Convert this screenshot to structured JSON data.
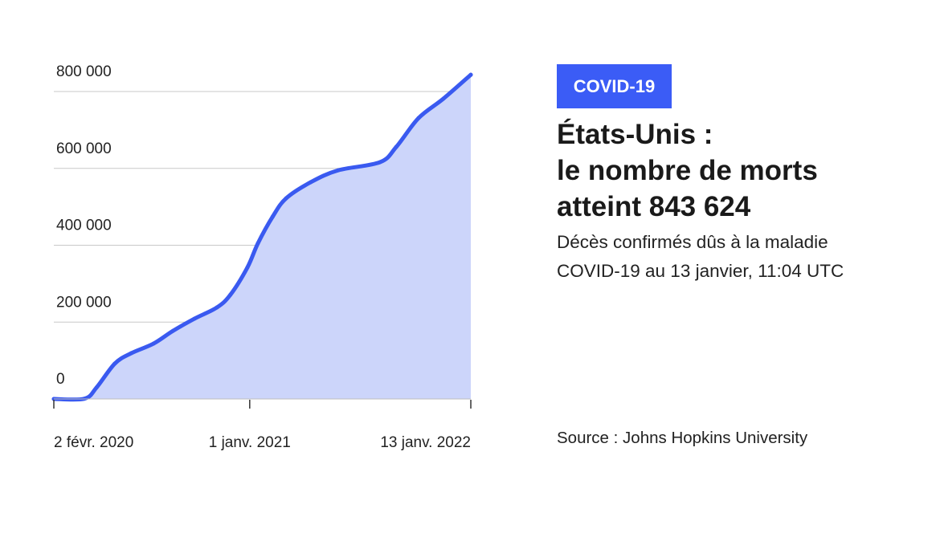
{
  "badge": "COVID-19",
  "title_lines": [
    "États-Unis :",
    "le nombre de morts",
    "atteint 843 624"
  ],
  "subtitle": "Décès confirmés dûs à la maladie COVID-19 au 13 janvier, 11:04 UTC",
  "source": "Source : Johns Hopkins University",
  "colors": {
    "accent": "#3b5cf6",
    "line": "#3a5af0",
    "area": "#ccd5fa",
    "grid": "#c8c8c8"
  },
  "chart_data": {
    "type": "area",
    "title": "États-Unis : le nombre de morts atteint 843 624",
    "xlabel": "",
    "ylabel": "",
    "x_unit": "days since 2 févr. 2020",
    "x_range": [
      0,
      711
    ],
    "ylim": [
      0,
      800000
    ],
    "grid": true,
    "y_ticks": [
      {
        "value": 0,
        "label": "0"
      },
      {
        "value": 200000,
        "label": "200 000"
      },
      {
        "value": 400000,
        "label": "400 000"
      },
      {
        "value": 600000,
        "label": "600 000"
      },
      {
        "value": 800000,
        "label": "800 000"
      }
    ],
    "x_ticks": [
      {
        "value": 0,
        "label": "2 févr. 2020"
      },
      {
        "value": 334,
        "label": "1 janv. 2021"
      },
      {
        "value": 711,
        "label": "13 janv. 2022"
      }
    ],
    "series": [
      {
        "name": "Décès confirmés",
        "x": [
          0,
          52,
          73,
          104,
          132,
          170,
          203,
          240,
          278,
          301,
          330,
          348,
          373,
          396,
          438,
          485,
          556,
          584,
          622,
          664,
          711
        ],
        "y": [
          0,
          500,
          30000,
          92000,
          119000,
          144000,
          177000,
          209000,
          238000,
          271000,
          342000,
          405000,
          474000,
          522000,
          564000,
          595000,
          616000,
          656000,
          731000,
          781000,
          843624
        ]
      }
    ]
  }
}
